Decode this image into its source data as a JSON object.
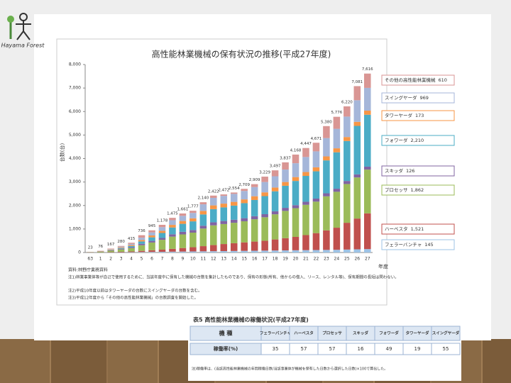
{
  "logo": {
    "text": "Hayama Forest"
  },
  "chart_data": {
    "type": "stacked_bar",
    "title": "高性能林業機械の保有状況の推移(平成27年度)",
    "y_label": "台数(台)",
    "x_label": "年度",
    "categories": [
      "63",
      "1",
      "2",
      "3",
      "4",
      "5",
      "6",
      "7",
      "8",
      "9",
      "10",
      "11",
      "12",
      "13",
      "14",
      "15",
      "16",
      "17",
      "18",
      "19",
      "20",
      "21",
      "22",
      "23",
      "24",
      "25",
      "26",
      "27"
    ],
    "total_labels": [
      "23",
      "76",
      "167",
      "280",
      "415",
      "736",
      "945",
      "1,178",
      "1,475",
      "1,661",
      "1,777",
      "2,140",
      "2,422",
      "2,472",
      "2,554",
      "2,709",
      "2,909",
      "3,229",
      "3,497",
      "3,837",
      "4,168",
      "4,447",
      "4,671",
      "5,380",
      "5,776",
      "6,220",
      "7,081",
      "7,616"
    ],
    "ylim": [
      0,
      8000
    ],
    "yticks": [
      0,
      {
        "value": 1000,
        "label": "1,000"
      },
      {
        "value": 2000,
        "label": "2,000"
      },
      {
        "value": 3000,
        "label": "3,000"
      },
      {
        "value": 4000,
        "label": "4,000"
      },
      {
        "value": 5000,
        "label": "5,000"
      },
      {
        "value": 6000,
        "label": "6,000"
      },
      {
        "value": 7000,
        "label": "7,000"
      },
      {
        "value": 8000,
        "label": "8,000"
      }
    ],
    "series": [
      {
        "name": "フェラーバンチャ",
        "color": "#9dc3e6",
        "end_label": "145",
        "values": [
          0,
          2,
          5,
          10,
          15,
          20,
          25,
          30,
          35,
          40,
          45,
          50,
          55,
          60,
          65,
          70,
          75,
          80,
          85,
          90,
          95,
          100,
          105,
          110,
          115,
          125,
          135,
          145
        ]
      },
      {
        "name": "ハーベスタ",
        "color": "#c0504d",
        "end_label": "1,521",
        "values": [
          0,
          5,
          10,
          20,
          30,
          50,
          70,
          90,
          120,
          150,
          180,
          220,
          260,
          300,
          330,
          360,
          390,
          420,
          470,
          520,
          570,
          640,
          720,
          830,
          940,
          1140,
          1310,
          1521
        ]
      },
      {
        "name": "プロセッサ",
        "color": "#9bbb59",
        "end_label": "1,862",
        "values": [
          10,
          30,
          60,
          100,
          140,
          240,
          330,
          420,
          520,
          580,
          620,
          750,
          840,
          850,
          870,
          900,
          950,
          1000,
          1070,
          1160,
          1220,
          1290,
          1340,
          1450,
          1530,
          1650,
          1750,
          1862
        ]
      },
      {
        "name": "スキッダ",
        "color": "#8064a2",
        "end_label": "126",
        "values": [
          5,
          10,
          20,
          30,
          40,
          60,
          70,
          80,
          100,
          110,
          110,
          120,
          130,
          130,
          130,
          130,
          130,
          130,
          130,
          130,
          130,
          130,
          130,
          130,
          130,
          130,
          130,
          126
        ]
      },
      {
        "name": "フォワーダ",
        "color": "#4bacc6",
        "end_label": "2,210",
        "values": [
          0,
          5,
          15,
          30,
          50,
          100,
          150,
          210,
          290,
          340,
          370,
          480,
          560,
          580,
          600,
          640,
          690,
          770,
          850,
          940,
          1030,
          1100,
          1160,
          1400,
          1550,
          1700,
          2064,
          2210
        ]
      },
      {
        "name": "タワーヤーダ",
        "color": "#f79646",
        "end_label": "173",
        "values": [
          5,
          10,
          20,
          30,
          40,
          60,
          80,
          90,
          110,
          120,
          130,
          150,
          160,
          160,
          160,
          160,
          160,
          160,
          160,
          160,
          165,
          165,
          170,
          170,
          170,
          170,
          172,
          173
        ]
      },
      {
        "name": "スイングヤーダ",
        "color": "#a5b6d9",
        "end_label": "969",
        "values": [
          0,
          5,
          15,
          30,
          50,
          100,
          130,
          160,
          200,
          220,
          230,
          280,
          320,
          330,
          340,
          360,
          390,
          440,
          480,
          530,
          590,
          640,
          680,
          780,
          830,
          870,
          920,
          969
        ]
      },
      {
        "name": "その他の高性能林業機械",
        "color": "#d99694",
        "end_label": "610",
        "values": [
          3,
          9,
          22,
          30,
          50,
          106,
          90,
          98,
          100,
          101,
          92,
          90,
          97,
          62,
          59,
          89,
          124,
          229,
          252,
          307,
          368,
          382,
          366,
          510,
          511,
          435,
          600,
          610
        ]
      }
    ],
    "source": "資料:林野庁業務資料",
    "notes": [
      "注1)林業事業体等が自己で使用するために、当該年度中に保有した機械の台数を集計したものであり、保有の形態(所有、他からの借入、リース、レンタル等)、保有期間の長短は問わない。",
      "注2)平成10年度以前はタワーヤーダの台数にスイングヤーダの台数を含む。",
      "注3)平成12年度から「その他の高性能林業機械」の台数調査を開始した。"
    ]
  },
  "table": {
    "title": "表5 高性能林業機械の稼働状況(平成27年度)",
    "header": [
      "機 種",
      "フェラーバンチャ",
      "ハーベスタ",
      "プロセッサ",
      "スキッダ",
      "フォワーダ",
      "タワーヤーダ",
      "スイングヤーダ"
    ],
    "rows": [
      [
        "稼働率(%)",
        "35",
        "57",
        "57",
        "16",
        "49",
        "19",
        "55"
      ]
    ],
    "note": "注)稼働率は、(当該高性能林業機械の年間稼働日数/当該事業体が機械を保有した日数から選択した日数)×100で算出した。"
  }
}
